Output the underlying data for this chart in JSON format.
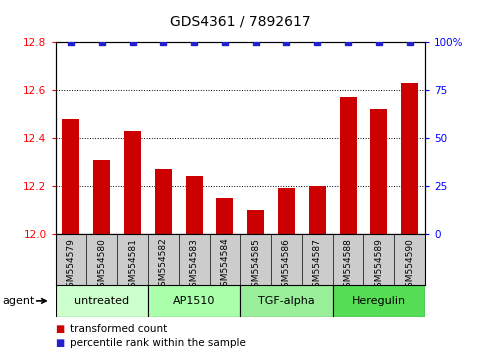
{
  "title": "GDS4361 / 7892617",
  "samples": [
    "GSM554579",
    "GSM554580",
    "GSM554581",
    "GSM554582",
    "GSM554583",
    "GSM554584",
    "GSM554585",
    "GSM554586",
    "GSM554587",
    "GSM554588",
    "GSM554589",
    "GSM554590"
  ],
  "bar_values": [
    12.48,
    12.31,
    12.43,
    12.27,
    12.24,
    12.15,
    12.1,
    12.19,
    12.2,
    12.57,
    12.52,
    12.63
  ],
  "percentile_values": [
    100,
    100,
    100,
    100,
    100,
    100,
    100,
    100,
    100,
    100,
    100,
    100
  ],
  "bar_color": "#cc0000",
  "percentile_color": "#2222cc",
  "ylim_left": [
    12.0,
    12.8
  ],
  "ylim_right": [
    0,
    100
  ],
  "yticks_left": [
    12.0,
    12.2,
    12.4,
    12.6,
    12.8
  ],
  "yticks_right": [
    0,
    25,
    50,
    75,
    100
  ],
  "ytick_labels_right": [
    "0",
    "25",
    "50",
    "75",
    "100%"
  ],
  "groups": [
    {
      "label": "untreated",
      "start": 0,
      "end": 3,
      "color": "#ccffcc"
    },
    {
      "label": "AP1510",
      "start": 3,
      "end": 6,
      "color": "#aaffaa"
    },
    {
      "label": "TGF-alpha",
      "start": 6,
      "end": 9,
      "color": "#99ee99"
    },
    {
      "label": "Heregulin",
      "start": 9,
      "end": 12,
      "color": "#55dd55"
    }
  ],
  "agent_label": "agent",
  "legend_bar_label": "transformed count",
  "legend_pct_label": "percentile rank within the sample",
  "title_fontsize": 10,
  "tick_fontsize": 7.5,
  "sample_fontsize": 6.5,
  "group_fontsize": 8,
  "legend_fontsize": 7.5,
  "bg_color": "#ffffff",
  "sample_box_color": "#cccccc",
  "bar_width": 0.55
}
